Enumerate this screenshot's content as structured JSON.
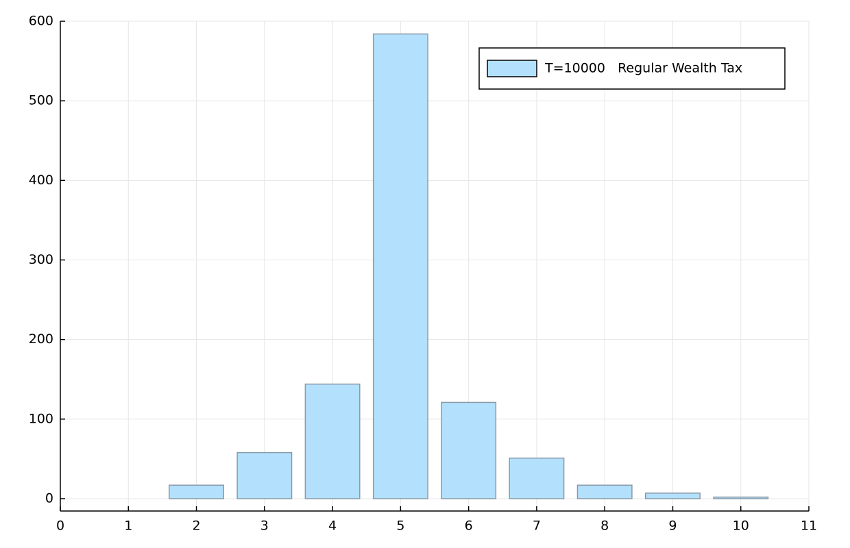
{
  "chart_data": {
    "type": "bar",
    "x": [
      1,
      2,
      3,
      4,
      5,
      6,
      7,
      8,
      9,
      10
    ],
    "series": [
      {
        "name": "T=10000   Regular Wealth Tax",
        "color": "#b3e0fc",
        "values": [
          0,
          17,
          58,
          144,
          584,
          121,
          51,
          17,
          7,
          2
        ]
      }
    ],
    "xlim": [
      0,
      11
    ],
    "xticks": [
      0,
      1,
      2,
      3,
      4,
      5,
      6,
      7,
      8,
      9,
      10,
      11
    ],
    "ylim": [
      -15.5,
      600
    ],
    "yticks": [
      0,
      100,
      200,
      300,
      400,
      500,
      600
    ],
    "grid": true,
    "legend": "top-right"
  }
}
